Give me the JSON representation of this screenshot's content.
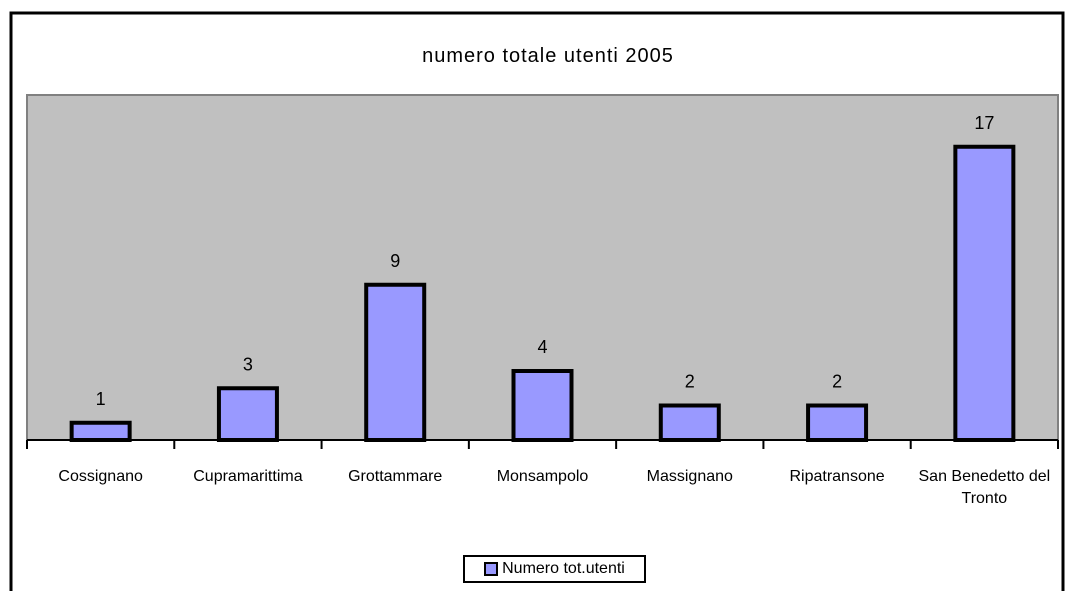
{
  "chart_data": {
    "type": "bar",
    "title": "numero totale utenti 2005",
    "categories": [
      "Cossignano",
      "Cupramarittima",
      "Grottammare",
      "Monsampolo",
      "Massignano",
      "Ripatransone",
      "San Benedetto del Tronto"
    ],
    "series": [
      {
        "name": "Numero tot.utenti",
        "color": "#9999ff",
        "values": [
          1,
          3,
          9,
          4,
          2,
          2,
          17
        ]
      }
    ],
    "ylim": [
      0,
      20
    ]
  }
}
